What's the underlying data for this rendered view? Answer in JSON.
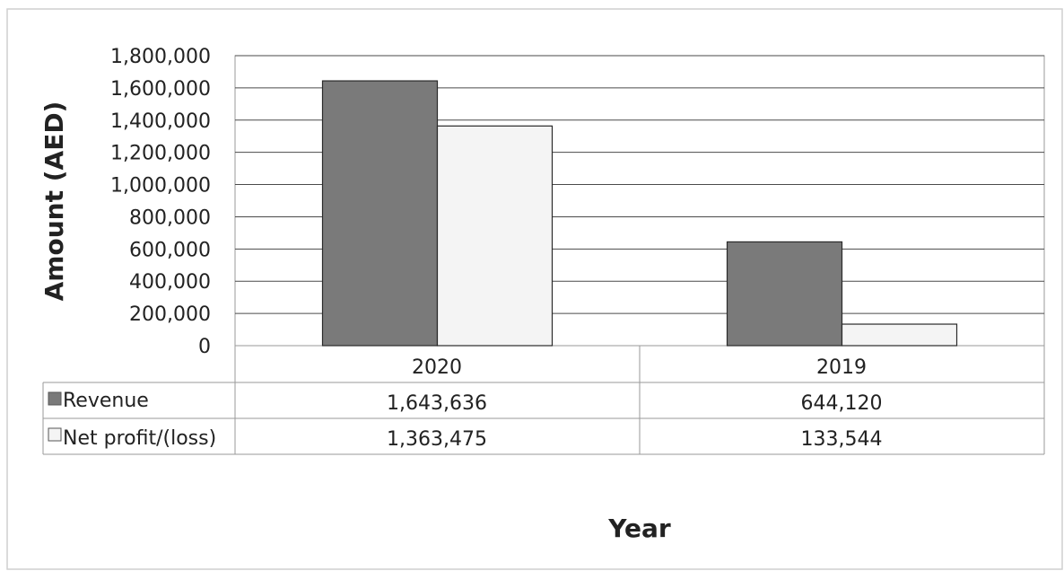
{
  "chart_data": {
    "type": "bar",
    "title": "",
    "xlabel": "Year",
    "ylabel": "Amount (AED)",
    "categories": [
      "2020",
      "2019"
    ],
    "series": [
      {
        "name": "Revenue",
        "values": [
          1643636,
          644120
        ],
        "color": "#7a7a7a"
      },
      {
        "name": "Net profit/(loss)",
        "values": [
          1363475,
          133544
        ],
        "color": "#f4f4f4"
      }
    ],
    "data_table": {
      "rows": [
        {
          "label": "Revenue",
          "cells": [
            "1,643,636",
            "644,120"
          ]
        },
        {
          "label": "Net profit/(loss)",
          "cells": [
            "1,363,475",
            "133,544"
          ]
        }
      ]
    },
    "y_ticks": [
      "0",
      "200,000",
      "400,000",
      "600,000",
      "800,000",
      "1,000,000",
      "1,200,000",
      "1,400,000",
      "1,600,000",
      "1,800,000"
    ],
    "ylim": [
      0,
      1800000
    ],
    "grid": true,
    "legend": "data-table"
  }
}
